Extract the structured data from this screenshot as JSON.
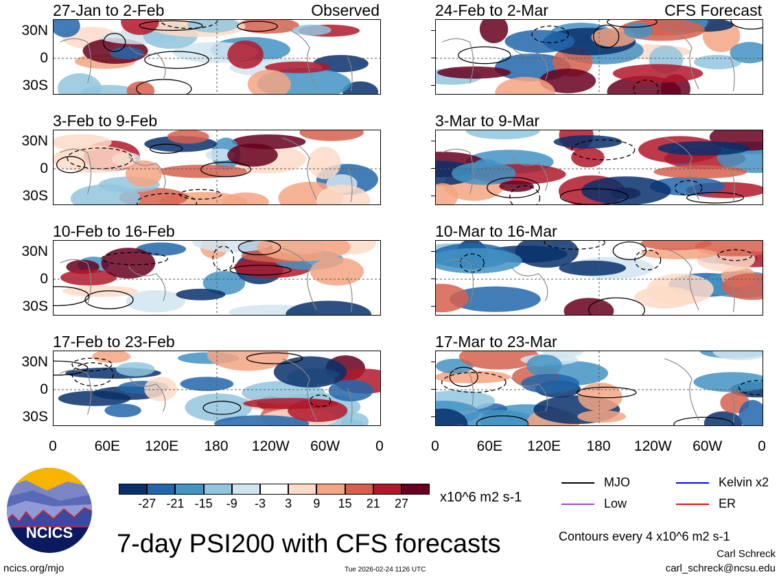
{
  "title": "7-day PSI200 with CFS forecasts",
  "units": "x10^6 m2 s-1",
  "contour_note": "Contours every 4 x10^6 m2 s-1",
  "author": "Carl Schreck",
  "email": "carl_schreck@ncsu.edu",
  "site": "ncics.org/mjo",
  "timestamp": "Tue 2026-02-24 1126 UTC",
  "logo_text": "NCICS",
  "chart_data": {
    "type": "heatmap",
    "lat_ticks": [
      "30N",
      "0",
      "30S"
    ],
    "lon_ticks": [
      "0",
      "60E",
      "120E",
      "180",
      "120W",
      "60W",
      "0"
    ],
    "left_header": "Observed",
    "right_header": "CFS Forecast",
    "panels_left": [
      "27-Jan to 2-Feb",
      "3-Feb to 9-Feb",
      "10-Feb to 16-Feb",
      "17-Feb to 23-Feb"
    ],
    "panels_right": [
      "24-Feb to 2-Mar",
      "3-Mar to 9-Mar",
      "10-Mar to 16-Mar",
      "17-Mar to 23-Mar"
    ],
    "colorbar": {
      "ticks": [
        "-27",
        "-21",
        "-15",
        "-9",
        "-3",
        "3",
        "9",
        "15",
        "21",
        "27"
      ],
      "colors": [
        "#08306b",
        "#2166ac",
        "#4393c3",
        "#92c5de",
        "#d1e5f0",
        "#ffffff",
        "#fddbc7",
        "#f4a582",
        "#d6604d",
        "#b2182b",
        "#67001f"
      ]
    },
    "legend": [
      {
        "label": "MJO",
        "color": "#000000"
      },
      {
        "label": "Kelvin x2",
        "color": "#0000ff"
      },
      {
        "label": "Low",
        "color": "#a040e0"
      },
      {
        "label": "ER",
        "color": "#ff0000"
      }
    ]
  }
}
